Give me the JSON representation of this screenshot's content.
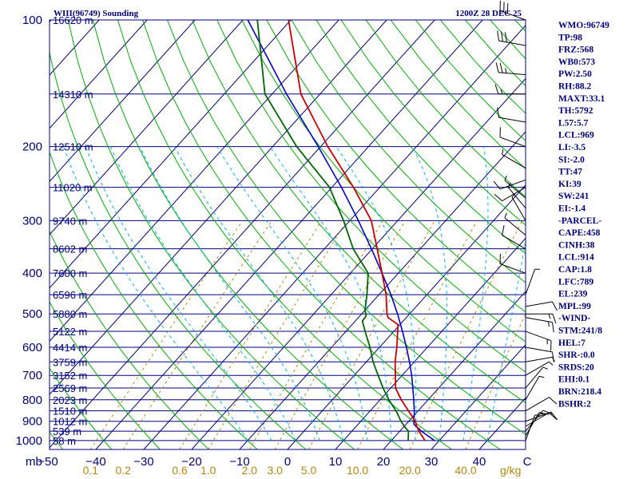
{
  "header": {
    "station": "WIII(96749) Sounding",
    "time": "1200Z 28 DEC 25"
  },
  "chart_data": {
    "type": "skew-t",
    "pressure_labels": [
      {
        "p": 100,
        "text": "100"
      },
      {
        "p": 200,
        "text": "200"
      },
      {
        "p": 300,
        "text": "300"
      },
      {
        "p": 400,
        "text": "400"
      },
      {
        "p": 500,
        "text": "500"
      },
      {
        "p": 600,
        "text": "600"
      },
      {
        "p": 700,
        "text": "700"
      },
      {
        "p": 800,
        "text": "800"
      },
      {
        "p": 900,
        "text": "900"
      },
      {
        "p": 1000,
        "text": "1000"
      }
    ],
    "height_labels": [
      {
        "p": 100,
        "text": "16620 m"
      },
      {
        "p": 150,
        "text": "14310 m"
      },
      {
        "p": 200,
        "text": "12510 m"
      },
      {
        "p": 250,
        "text": "11020 m"
      },
      {
        "p": 300,
        "text": "9740 m"
      },
      {
        "p": 350,
        "text": "8602 m"
      },
      {
        "p": 400,
        "text": "7600 m"
      },
      {
        "p": 450,
        "text": "6596 m"
      },
      {
        "p": 500,
        "text": "5880 m"
      },
      {
        "p": 550,
        "text": "5122 m"
      },
      {
        "p": 600,
        "text": "4414 m"
      },
      {
        "p": 650,
        "text": "3759 m"
      },
      {
        "p": 700,
        "text": "3152 m"
      },
      {
        "p": 750,
        "text": "2569 m"
      },
      {
        "p": 800,
        "text": "2023 m"
      },
      {
        "p": 850,
        "text": "1510 m"
      },
      {
        "p": 900,
        "text": "1012 m"
      },
      {
        "p": 950,
        "text": "539 m"
      },
      {
        "p": 1000,
        "text": "58 m"
      }
    ],
    "temp_axis": {
      "unit": "mb",
      "ticks": [
        {
          "t": -50,
          "text": "−50"
        },
        {
          "t": -40,
          "text": "−40"
        },
        {
          "t": -30,
          "text": "−30"
        },
        {
          "t": -20,
          "text": "−20"
        },
        {
          "t": -10,
          "text": "−10"
        },
        {
          "t": 0,
          "text": "0"
        },
        {
          "t": 10,
          "text": "10"
        },
        {
          "t": 20,
          "text": "20"
        },
        {
          "t": 30,
          "text": "30"
        },
        {
          "t": 40,
          "text": "40"
        },
        {
          "t": 50,
          "text": "C"
        }
      ]
    },
    "mixing_ratio_labels": {
      "unit": "g/kg",
      "values": [
        {
          "w": 0.1,
          "text": "0.1"
        },
        {
          "w": 0.2,
          "text": "0.2"
        },
        {
          "w": 0.6,
          "text": "0.6"
        },
        {
          "w": 1.0,
          "text": "1.0"
        },
        {
          "w": 2.0,
          "text": "2.0"
        },
        {
          "w": 3.0,
          "text": "3.0"
        },
        {
          "w": 5.0,
          "text": "5.0"
        },
        {
          "w": 10.0,
          "text": "10.0"
        },
        {
          "w": 20.0,
          "text": "20.0"
        },
        {
          "w": 40.0,
          "text": "40.0"
        }
      ]
    },
    "temperature_profile": [
      {
        "p": 1000,
        "t": 27.0
      },
      {
        "p": 950,
        "t": 24.0
      },
      {
        "p": 925,
        "t": 22.6
      },
      {
        "p": 900,
        "t": 21.4
      },
      {
        "p": 850,
        "t": 18.0
      },
      {
        "p": 800,
        "t": 14.4
      },
      {
        "p": 750,
        "t": 11.0
      },
      {
        "p": 700,
        "t": 8.6
      },
      {
        "p": 650,
        "t": 6.0
      },
      {
        "p": 600,
        "t": 3.6
      },
      {
        "p": 550,
        "t": 0.8
      },
      {
        "p": 530,
        "t": -0.4
      },
      {
        "p": 510,
        "t": -3.8
      },
      {
        "p": 500,
        "t": -4.7
      },
      {
        "p": 450,
        "t": -8.5
      },
      {
        "p": 400,
        "t": -13.4
      },
      {
        "p": 350,
        "t": -19.0
      },
      {
        "p": 300,
        "t": -25.5
      },
      {
        "p": 250,
        "t": -35.5
      },
      {
        "p": 200,
        "t": -48.5
      },
      {
        "p": 150,
        "t": -64.0
      },
      {
        "p": 100,
        "t": -80.5
      }
    ],
    "dewpoint_profile": [
      {
        "p": 1000,
        "t": 23.5
      },
      {
        "p": 950,
        "t": 21.8
      },
      {
        "p": 925,
        "t": 20.0
      },
      {
        "p": 900,
        "t": 18.4
      },
      {
        "p": 850,
        "t": 15.4
      },
      {
        "p": 800,
        "t": 11.8
      },
      {
        "p": 750,
        "t": 8.4
      },
      {
        "p": 700,
        "t": 5.0
      },
      {
        "p": 650,
        "t": 1.4
      },
      {
        "p": 600,
        "t": -2.0
      },
      {
        "p": 550,
        "t": -6.0
      },
      {
        "p": 520,
        "t": -8.5
      },
      {
        "p": 505,
        "t": -8.7
      },
      {
        "p": 490,
        "t": -10.0
      },
      {
        "p": 450,
        "t": -12.5
      },
      {
        "p": 400,
        "t": -16.3
      },
      {
        "p": 350,
        "t": -24.0
      },
      {
        "p": 300,
        "t": -31.3
      },
      {
        "p": 250,
        "t": -40.5
      },
      {
        "p": 200,
        "t": -55.0
      },
      {
        "p": 150,
        "t": -71.5
      },
      {
        "p": 100,
        "t": -87.0
      }
    ],
    "parcel_profile": [
      {
        "p": 1000,
        "t": 29.0
      },
      {
        "p": 950,
        "t": 24.5
      },
      {
        "p": 914,
        "t": 21.6
      },
      {
        "p": 850,
        "t": 19.2
      },
      {
        "p": 800,
        "t": 17.0
      },
      {
        "p": 750,
        "t": 14.6
      },
      {
        "p": 700,
        "t": 12.0
      },
      {
        "p": 650,
        "t": 9.0
      },
      {
        "p": 600,
        "t": 5.6
      },
      {
        "p": 550,
        "t": 1.8
      },
      {
        "p": 500,
        "t": -2.5
      },
      {
        "p": 450,
        "t": -7.5
      },
      {
        "p": 400,
        "t": -13.4
      },
      {
        "p": 350,
        "t": -20.2
      },
      {
        "p": 300,
        "t": -28.2
      },
      {
        "p": 250,
        "t": -38.0
      },
      {
        "p": 200,
        "t": -50.5
      },
      {
        "p": 150,
        "t": -67.0
      },
      {
        "p": 100,
        "t": -89.0
      }
    ],
    "wind_barbs": [
      {
        "p": 100,
        "dir": 290,
        "spd": 30
      },
      {
        "p": 115,
        "dir": 280,
        "spd": 30
      },
      {
        "p": 135,
        "dir": 275,
        "spd": 25
      },
      {
        "p": 150,
        "dir": 270,
        "spd": 15
      },
      {
        "p": 175,
        "dir": 280,
        "spd": 10
      },
      {
        "p": 200,
        "dir": 290,
        "spd": 10
      },
      {
        "p": 225,
        "dir": 300,
        "spd": 5
      },
      {
        "p": 240,
        "dir": 250,
        "spd": 10
      },
      {
        "p": 250,
        "dir": 240,
        "spd": 10
      },
      {
        "p": 265,
        "dir": 310,
        "spd": 5
      },
      {
        "p": 280,
        "dir": 320,
        "spd": 5
      },
      {
        "p": 300,
        "dir": 330,
        "spd": 5
      },
      {
        "p": 325,
        "dir": 310,
        "spd": 5
      },
      {
        "p": 350,
        "dir": 300,
        "spd": 10
      },
      {
        "p": 400,
        "dir": 290,
        "spd": 10
      },
      {
        "p": 450,
        "dir": 20,
        "spd": 5
      },
      {
        "p": 480,
        "dir": 80,
        "spd": 10
      },
      {
        "p": 500,
        "dir": 90,
        "spd": 15
      },
      {
        "p": 510,
        "dir": 100,
        "spd": 15
      },
      {
        "p": 550,
        "dir": 110,
        "spd": 15
      },
      {
        "p": 600,
        "dir": 100,
        "spd": 10
      },
      {
        "p": 650,
        "dir": 80,
        "spd": 5
      },
      {
        "p": 700,
        "dir": 60,
        "spd": 5
      },
      {
        "p": 750,
        "dir": 40,
        "spd": 5
      },
      {
        "p": 800,
        "dir": 30,
        "spd": 5
      },
      {
        "p": 850,
        "dir": 60,
        "spd": 10
      },
      {
        "p": 900,
        "dir": 70,
        "spd": 10
      },
      {
        "p": 925,
        "dir": 60,
        "spd": 10
      },
      {
        "p": 950,
        "dir": 40,
        "spd": 15
      },
      {
        "p": 975,
        "dir": 30,
        "spd": 10
      },
      {
        "p": 1000,
        "dir": 20,
        "spd": 5
      }
    ]
  },
  "indices": [
    "WMO:96749",
    "TP:98",
    "FRZ:568",
    "WB0:573",
    "PW:2.50",
    "RH:88.2",
    "MAXT:33.1",
    "TH:5792",
    "L57:5.7",
    "LCL:969",
    "LI:-3.5",
    "SI:-2.0",
    "TT:47",
    "KI:39",
    "SW:241",
    "EI:-1.4",
    "-PARCEL-",
    "CAPE:458",
    "CINH:38",
    "LCL:914",
    "CAP:1.8",
    "LFC:789",
    "EL:239",
    "MPL:99",
    "-WIND-",
    "STM:241/8",
    "HEL:7",
    "SHR-:0.0",
    "SRDS:20",
    "EHI:0.1",
    "BRN:218.4",
    "BSHR:2"
  ],
  "colors": {
    "frame": "#000080",
    "isotherm": "#000080",
    "dry_adiabat": "#00b000",
    "moist_adiabat": "#00b0ff",
    "mixing_ratio": "#b8860b",
    "temperature": "#cc0000",
    "dewpoint": "#006600",
    "parcel": "#0000cc",
    "barb": "#000000"
  }
}
